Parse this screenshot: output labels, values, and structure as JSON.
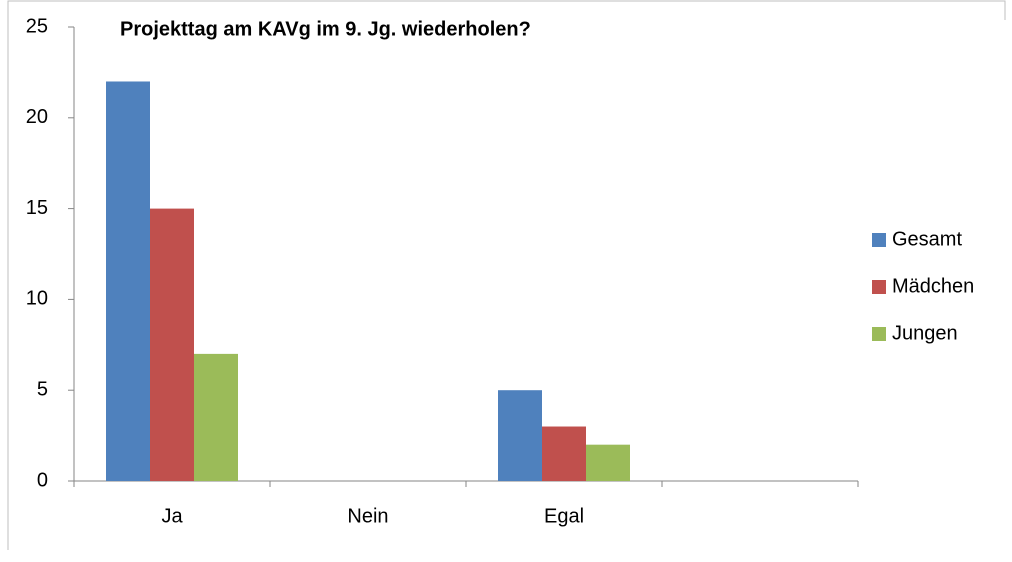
{
  "chart_data": {
    "type": "bar",
    "title": "Projekttag am KAVg im 9. Jg. wiederholen?",
    "categories": [
      "Ja",
      "Nein",
      "Egal",
      null
    ],
    "series": [
      {
        "name": "Gesamt",
        "color": "#4f81bd",
        "values": [
          22,
          0,
          5,
          null
        ]
      },
      {
        "name": "Mädchen",
        "color": "#c0504d",
        "values": [
          15,
          0,
          3,
          null
        ]
      },
      {
        "name": "Jungen",
        "color": "#9bbb59",
        "values": [
          7,
          0,
          2,
          null
        ]
      }
    ],
    "ylim": [
      0,
      25
    ],
    "yticks": [
      0,
      5,
      10,
      15,
      20,
      25
    ],
    "grid": false,
    "legend": "right"
  }
}
